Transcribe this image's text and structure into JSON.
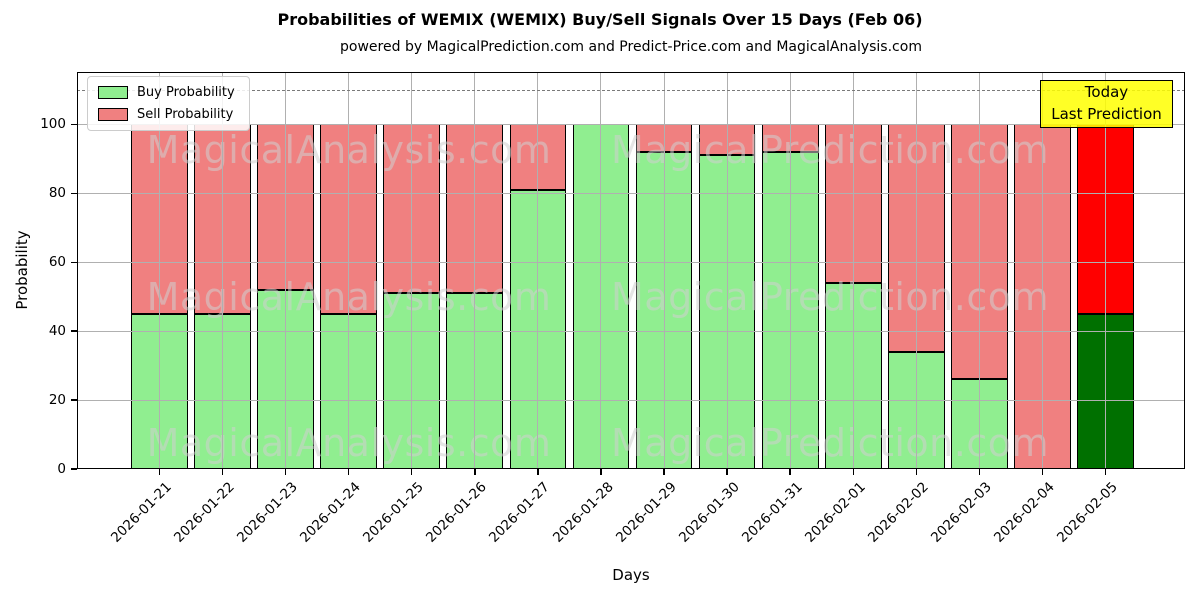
{
  "title": "Probabilities of WEMIX (WEMIX) Buy/Sell Signals Over 15 Days (Feb 06)",
  "subtitle": "powered by MagicalPrediction.com and Predict-Price.com and MagicalAnalysis.com",
  "axes": {
    "xlabel": "Days",
    "ylabel": "Probability",
    "yticks": [
      0,
      20,
      40,
      60,
      80,
      100
    ],
    "ylim": [
      0,
      115.2
    ],
    "dashed_guide_y": 110,
    "grid": true
  },
  "legend": {
    "position": "upper left",
    "items": [
      {
        "label": "Buy Probability",
        "color": "#90EE90"
      },
      {
        "label": "Sell Probability",
        "color": "#F08080"
      }
    ]
  },
  "annotation_box": {
    "line1": "Today",
    "line2": "Last Prediction",
    "bg_color": "#FFFF00",
    "border_color": "#000000"
  },
  "watermarks": {
    "left_text": "MagicalAnalysis.com",
    "right_text": "MagicalPrediction.com"
  },
  "chart_data": {
    "type": "bar",
    "stacked": true,
    "title": "Probabilities of WEMIX (WEMIX) Buy/Sell Signals Over 15 Days (Feb 06)",
    "xlabel": "Days",
    "ylabel": "Probability",
    "ylim": [
      0,
      115.2
    ],
    "legend_position": "upper left",
    "categories": [
      "2026-01-21",
      "2026-01-22",
      "2026-01-23",
      "2026-01-24",
      "2026-01-25",
      "2026-01-26",
      "2026-01-27",
      "2026-01-28",
      "2026-01-29",
      "2026-01-30",
      "2026-01-31",
      "2026-02-01",
      "2026-02-02",
      "2026-02-03",
      "2026-02-04",
      "2026-02-05"
    ],
    "series": [
      {
        "name": "Buy Probability",
        "color": "#90EE90",
        "values": [
          45,
          45,
          52,
          45,
          51,
          51,
          81,
          100,
          92,
          91,
          92,
          54,
          34,
          26,
          0,
          45
        ]
      },
      {
        "name": "Sell Probability",
        "color": "#F08080",
        "values": [
          55,
          55,
          48,
          55,
          49,
          49,
          19,
          0,
          8,
          9,
          8,
          46,
          66,
          74,
          100,
          55
        ]
      }
    ],
    "today_bar": {
      "index": 15,
      "category": "2026-02-05",
      "buy_color": "#007000",
      "sell_color": "#FF0000",
      "label": "Today Last Prediction"
    }
  }
}
